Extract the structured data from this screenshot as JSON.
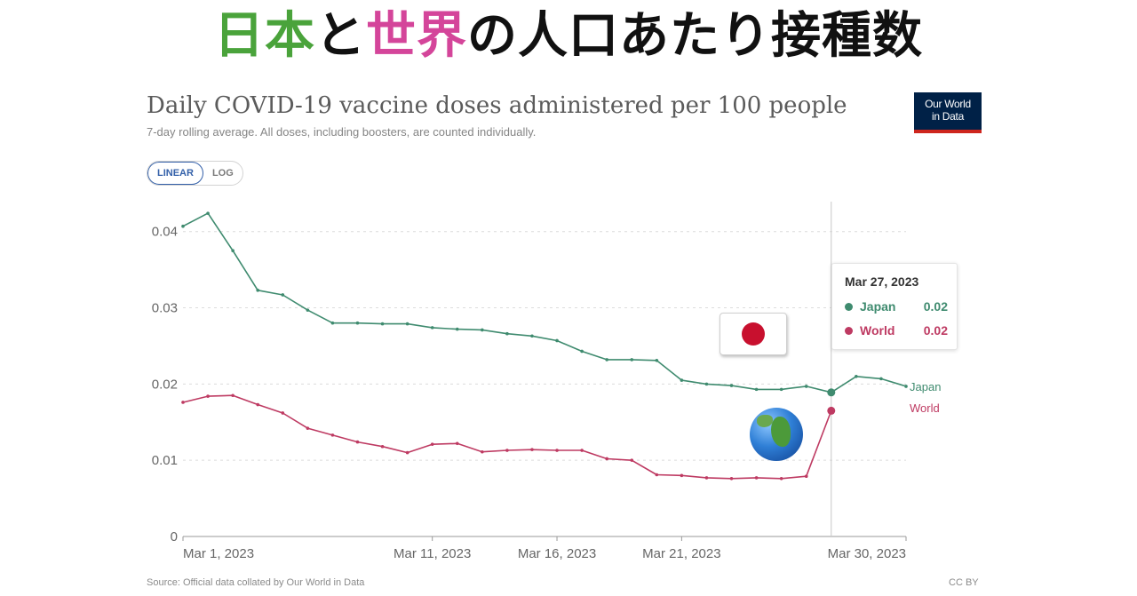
{
  "banner": {
    "part1": "日本",
    "part2": "と",
    "part3": "世界",
    "part4": "の人口あたり接種数"
  },
  "header": {
    "title": "Daily COVID-19 vaccine doses administered per 100 people",
    "subtitle": "7-day rolling average. All doses, including boosters, are counted individually.",
    "logo_line1": "Our World",
    "logo_line2": "in Data"
  },
  "controls": {
    "linear_label": "LINEAR",
    "log_label": "LOG"
  },
  "tooltip": {
    "date": "Mar 27, 2023",
    "rows": [
      {
        "name": "Japan",
        "value": "0.02",
        "color": "#3f8b6f"
      },
      {
        "name": "World",
        "value": "0.02",
        "color": "#be3a62"
      }
    ]
  },
  "footer": {
    "source": "Source: Official data collated by Our World in Data",
    "license": "CC BY"
  },
  "chart_data": {
    "type": "line",
    "title": "Daily COVID-19 vaccine doses administered per 100 people",
    "subtitle": "7-day rolling average. All doses, including boosters, are counted individually.",
    "x_tick_labels": [
      "Mar 1, 2023",
      "Mar 11, 2023",
      "Mar 16, 2023",
      "Mar 21, 2023",
      "Mar 30, 2023"
    ],
    "x_ticks": [
      1,
      11,
      16,
      21,
      30
    ],
    "y_ticks": [
      0,
      0.01,
      0.02,
      0.03,
      0.04
    ],
    "y_tick_labels": [
      "0",
      "0.01",
      "0.02",
      "0.03",
      "0.04"
    ],
    "ylim": [
      0,
      0.043
    ],
    "xlim": [
      1,
      30
    ],
    "grid": "horizontal-dotted",
    "scale": "linear",
    "hover_day": 27,
    "series": [
      {
        "name": "Japan",
        "color": "#3f8b6f",
        "x": [
          1,
          2,
          3,
          4,
          5,
          6,
          7,
          8,
          9,
          10,
          11,
          12,
          13,
          14,
          15,
          16,
          17,
          18,
          19,
          20,
          21,
          22,
          23,
          24,
          25,
          26,
          27,
          28,
          29,
          30
        ],
        "values": [
          0.0407,
          0.0424,
          0.0375,
          0.0323,
          0.0317,
          0.0297,
          0.028,
          0.028,
          0.0279,
          0.0279,
          0.0274,
          0.0272,
          0.0271,
          0.0266,
          0.0263,
          0.0257,
          0.0243,
          0.0232,
          0.0232,
          0.0231,
          0.0205,
          0.02,
          0.0198,
          0.0193,
          0.0193,
          0.0197,
          0.0189,
          0.021,
          0.0207,
          0.0197
        ]
      },
      {
        "name": "World",
        "color": "#be3a62",
        "x": [
          1,
          2,
          3,
          4,
          5,
          6,
          7,
          8,
          9,
          10,
          11,
          12,
          13,
          14,
          15,
          16,
          17,
          18,
          19,
          20,
          21,
          22,
          23,
          24,
          25,
          26,
          27
        ],
        "values": [
          0.0176,
          0.0184,
          0.0185,
          0.0173,
          0.0162,
          0.0142,
          0.0133,
          0.0124,
          0.0118,
          0.011,
          0.0121,
          0.0122,
          0.0111,
          0.0113,
          0.0114,
          0.0113,
          0.0113,
          0.0102,
          0.01,
          0.0081,
          0.008,
          0.0077,
          0.0076,
          0.0077,
          0.0076,
          0.0079,
          0.0165
        ]
      }
    ]
  }
}
